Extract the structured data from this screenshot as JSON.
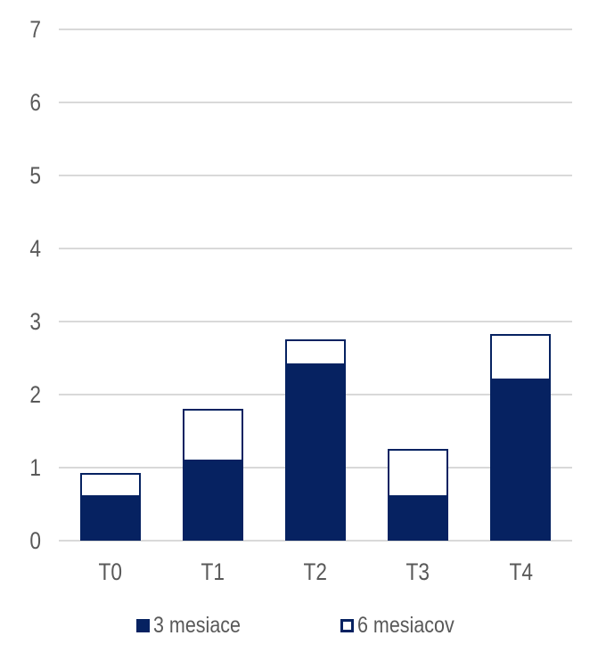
{
  "chart_data": {
    "type": "bar",
    "stacked": true,
    "title": "",
    "xlabel": "",
    "ylabel": "",
    "categories": [
      "T0",
      "T1",
      "T2",
      "T3",
      "T4"
    ],
    "series": [
      {
        "name": "3 mesiace",
        "style": "filled",
        "values": [
          0.6,
          1.08,
          2.4,
          0.6,
          2.19
        ]
      },
      {
        "name": "6 mesiacov",
        "style": "outlined-white",
        "values": [
          0.33,
          0.73,
          0.36,
          0.66,
          0.64
        ]
      }
    ],
    "stack_totals": [
      0.93,
      1.81,
      2.76,
      1.26,
      2.83
    ],
    "ylim": [
      0,
      7
    ],
    "yticks": [
      0,
      1,
      2,
      3,
      4,
      5,
      6,
      7
    ],
    "grid": true,
    "legend_position": "bottom-center"
  },
  "colors": {
    "bar_fill": "#062261",
    "bar_outline": "#062261",
    "grid": "#d9d9d9",
    "axis_text": "#595959",
    "background": "#ffffff"
  },
  "legend": {
    "items": [
      {
        "label": "3 mesiace",
        "swatch": "filled"
      },
      {
        "label": "6 mesiacov",
        "swatch": "outlined"
      }
    ]
  }
}
